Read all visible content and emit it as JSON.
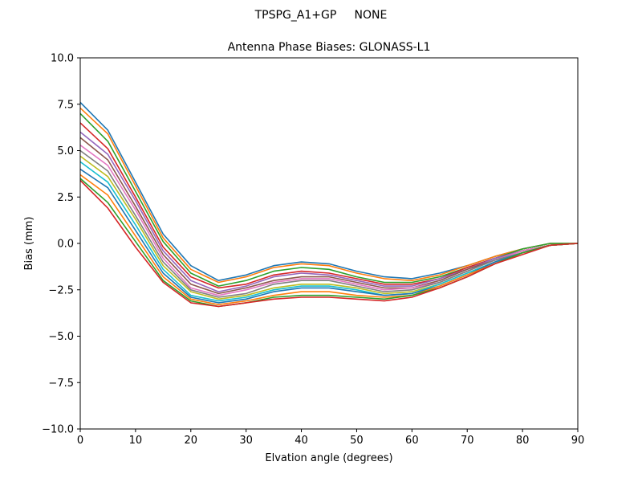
{
  "figure": {
    "suptitle": "TPSPG_A1+GP     NONE"
  },
  "chart_data": {
    "type": "line",
    "title": "Antenna Phase Biases: GLONASS-L1",
    "xlabel": "Elvation angle (degrees)",
    "ylabel": "Bias (mm)",
    "xlim": [
      0,
      90
    ],
    "ylim": [
      -10,
      10
    ],
    "xticks": [
      0,
      10,
      20,
      30,
      40,
      50,
      60,
      70,
      80,
      90
    ],
    "yticks": [
      -10.0,
      -7.5,
      -5.0,
      -2.5,
      0.0,
      2.5,
      5.0,
      7.5,
      10.0
    ],
    "xtick_labels": [
      "0",
      "10",
      "20",
      "30",
      "40",
      "50",
      "60",
      "70",
      "80",
      "90"
    ],
    "ytick_labels": [
      "−10.0",
      "−7.5",
      "−5.0",
      "−2.5",
      "0.0",
      "2.5",
      "5.0",
      "7.5",
      "10.0"
    ],
    "grid": false,
    "legend": "none",
    "x": [
      0,
      5,
      10,
      15,
      20,
      25,
      30,
      35,
      40,
      45,
      50,
      55,
      60,
      65,
      70,
      75,
      80,
      85,
      90
    ],
    "series": [
      {
        "values": [
          7.6,
          6.1,
          3.3,
          0.5,
          -1.2,
          -2.0,
          -1.7,
          -1.2,
          -1.0,
          -1.1,
          -1.5,
          -1.8,
          -1.9,
          -1.6,
          -1.2,
          -0.7,
          -0.3,
          0.0,
          0.0
        ]
      },
      {
        "values": [
          7.3,
          5.9,
          3.1,
          0.3,
          -1.4,
          -2.1,
          -1.8,
          -1.3,
          -1.1,
          -1.2,
          -1.6,
          -1.9,
          -2.0,
          -1.7,
          -1.2,
          -0.7,
          -0.3,
          0.0,
          0.0
        ]
      },
      {
        "values": [
          7.0,
          5.5,
          2.8,
          0.1,
          -1.6,
          -2.3,
          -2.0,
          -1.5,
          -1.3,
          -1.4,
          -1.8,
          -2.1,
          -2.1,
          -1.8,
          -1.3,
          -0.8,
          -0.3,
          0.0,
          0.0
        ]
      },
      {
        "values": [
          6.5,
          5.1,
          2.5,
          -0.2,
          -1.8,
          -2.4,
          -2.2,
          -1.7,
          -1.5,
          -1.6,
          -1.9,
          -2.2,
          -2.2,
          -1.9,
          -1.3,
          -0.8,
          -0.4,
          -0.1,
          0.0
        ]
      },
      {
        "values": [
          6.0,
          4.8,
          2.3,
          -0.4,
          -2.0,
          -2.6,
          -2.3,
          -1.8,
          -1.6,
          -1.7,
          -2.0,
          -2.3,
          -2.3,
          -1.9,
          -1.4,
          -0.8,
          -0.4,
          -0.1,
          0.0
        ]
      },
      {
        "values": [
          5.7,
          4.5,
          2.0,
          -0.6,
          -2.2,
          -2.7,
          -2.4,
          -2.0,
          -1.8,
          -1.8,
          -2.1,
          -2.4,
          -2.4,
          -2.0,
          -1.4,
          -0.9,
          -0.4,
          -0.1,
          0.0
        ]
      },
      {
        "values": [
          5.3,
          4.2,
          1.8,
          -0.8,
          -2.4,
          -2.8,
          -2.5,
          -2.1,
          -1.9,
          -1.9,
          -2.2,
          -2.5,
          -2.4,
          -2.1,
          -1.5,
          -0.9,
          -0.4,
          -0.1,
          0.0
        ]
      },
      {
        "values": [
          5.0,
          3.9,
          1.5,
          -1.0,
          -2.5,
          -2.9,
          -2.7,
          -2.2,
          -2.0,
          -2.0,
          -2.3,
          -2.6,
          -2.5,
          -2.1,
          -1.5,
          -0.9,
          -0.5,
          -0.1,
          0.0
        ]
      },
      {
        "values": [
          4.7,
          3.6,
          1.3,
          -1.2,
          -2.6,
          -3.0,
          -2.8,
          -2.4,
          -2.2,
          -2.2,
          -2.4,
          -2.7,
          -2.6,
          -2.2,
          -1.6,
          -1.0,
          -0.5,
          -0.1,
          0.0
        ]
      },
      {
        "values": [
          4.4,
          3.3,
          1.0,
          -1.4,
          -2.8,
          -3.1,
          -2.9,
          -2.5,
          -2.3,
          -2.3,
          -2.5,
          -2.8,
          -2.7,
          -2.2,
          -1.6,
          -1.0,
          -0.5,
          -0.1,
          0.0
        ]
      },
      {
        "values": [
          4.0,
          3.0,
          0.7,
          -1.6,
          -2.9,
          -3.2,
          -3.0,
          -2.6,
          -2.4,
          -2.4,
          -2.6,
          -2.8,
          -2.7,
          -2.3,
          -1.7,
          -1.0,
          -0.5,
          -0.1,
          0.0
        ]
      },
      {
        "values": [
          3.7,
          2.6,
          0.4,
          -1.8,
          -3.0,
          -3.3,
          -3.1,
          -2.8,
          -2.6,
          -2.6,
          -2.8,
          -2.9,
          -2.8,
          -2.3,
          -1.7,
          -1.1,
          -0.5,
          -0.1,
          0.0
        ]
      },
      {
        "values": [
          3.5,
          2.2,
          0.1,
          -2.0,
          -3.1,
          -3.4,
          -3.2,
          -2.9,
          -2.8,
          -2.8,
          -2.9,
          -3.0,
          -2.8,
          -2.4,
          -1.8,
          -1.1,
          -0.5,
          -0.1,
          0.0
        ]
      },
      {
        "values": [
          3.4,
          1.9,
          -0.2,
          -2.1,
          -3.2,
          -3.4,
          -3.2,
          -3.0,
          -2.9,
          -2.9,
          -3.0,
          -3.1,
          -2.9,
          -2.4,
          -1.8,
          -1.1,
          -0.6,
          -0.1,
          0.0
        ]
      }
    ]
  }
}
